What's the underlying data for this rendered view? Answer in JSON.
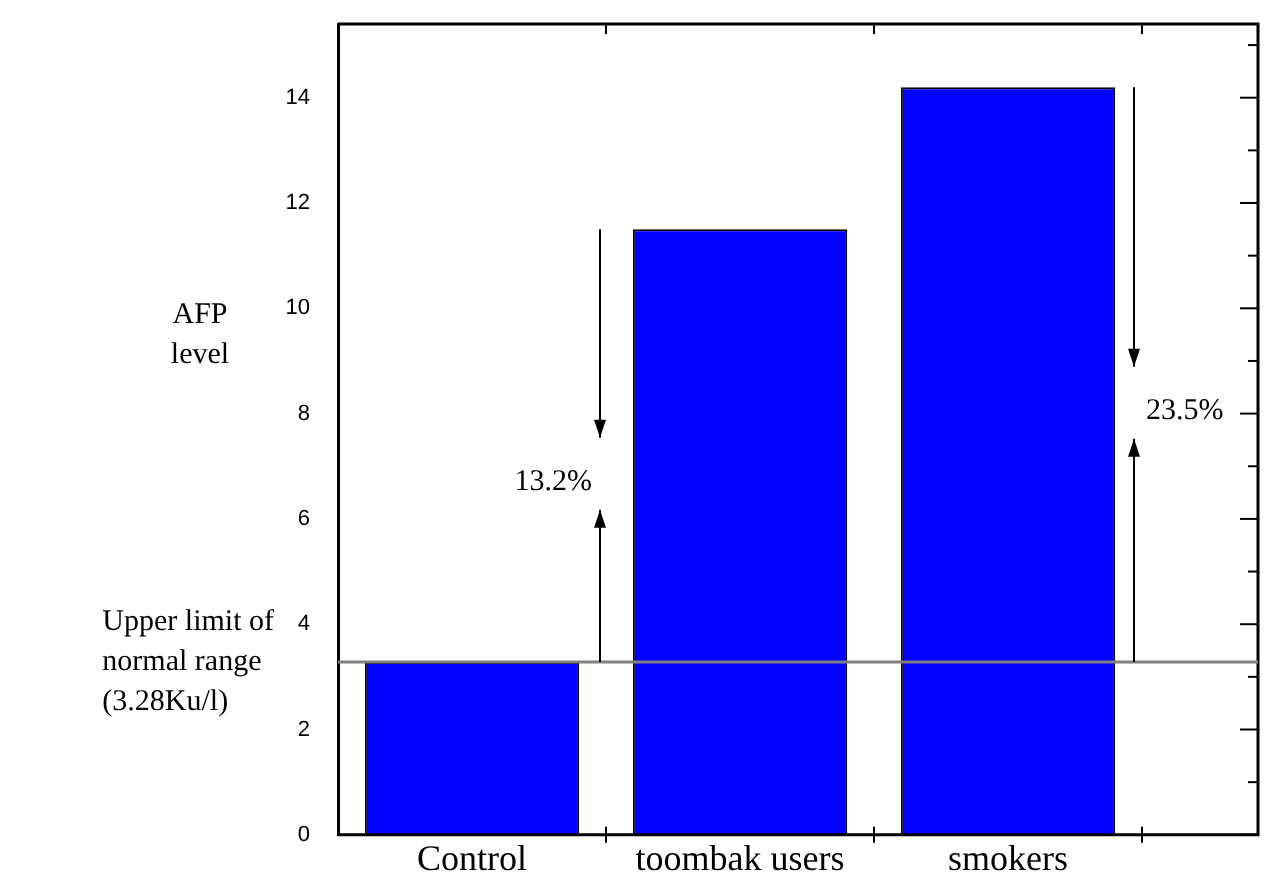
{
  "chart_data": {
    "type": "bar",
    "ylabel": "AFP level",
    "categories": [
      "Control",
      "toombak users",
      "smokers"
    ],
    "values": [
      3.28,
      11.5,
      14.2
    ],
    "color": "#0000ff",
    "ylim": [
      0,
      15.4
    ],
    "yticks": [
      0,
      {
        "value": 1,
        "label": null
      },
      2,
      {
        "value": 3,
        "label": null
      },
      4,
      {
        "value": 5,
        "label": null
      },
      6,
      {
        "value": 7,
        "label": null
      },
      8,
      {
        "value": 9,
        "label": null
      },
      10,
      {
        "value": 11,
        "label": null
      },
      12,
      {
        "value": 13,
        "label": null
      },
      14,
      {
        "value": 15,
        "label": null
      }
    ],
    "grid": false,
    "legend": false,
    "ref_lines": [
      {
        "axis": "y",
        "value": 3.28,
        "label": "Upper limit of normal range (3.28Ku/l)",
        "color": "#808080"
      }
    ],
    "annotations": [
      "13.2%",
      "23.5%"
    ]
  }
}
